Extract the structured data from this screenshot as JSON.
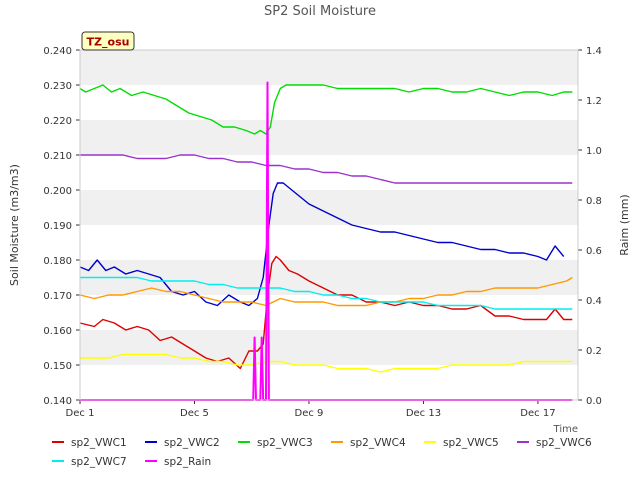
{
  "chart_data": {
    "type": "line",
    "title": "SP2 Soil Moisture",
    "xlabel": "Time",
    "ylabel": "Soil Moisture (m3/m3)",
    "y2label": "Raim (mm)",
    "station_label": "TZ_osu",
    "x_range_days": [
      1,
      18.4
    ],
    "x_ticks": [
      {
        "day": 1,
        "label": "Dec 1"
      },
      {
        "day": 5,
        "label": "Dec 5"
      },
      {
        "day": 9,
        "label": "Dec 9"
      },
      {
        "day": 13,
        "label": "Dec 13"
      },
      {
        "day": 17,
        "label": "Dec 17"
      }
    ],
    "ylim": [
      0.14,
      0.24
    ],
    "y_ticks": [
      "0.140",
      "0.150",
      "0.160",
      "0.170",
      "0.180",
      "0.190",
      "0.200",
      "0.210",
      "0.220",
      "0.230",
      "0.240"
    ],
    "y2lim": [
      0,
      1.4
    ],
    "y2_ticks": [
      "0.0",
      "0.2",
      "0.4",
      "0.6",
      "0.8",
      "1.0",
      "1.2",
      "1.4"
    ],
    "grid": "horizontal bands",
    "legend_position": "bottom",
    "series": [
      {
        "name": "sp2_VWC1",
        "color": "#dd0000",
        "axis": "left",
        "x": [
          1.0,
          1.5,
          1.8,
          2.2,
          2.6,
          3.0,
          3.4,
          3.8,
          4.2,
          4.6,
          5.0,
          5.4,
          5.8,
          6.2,
          6.6,
          6.9,
          7.2,
          7.4,
          7.55,
          7.7,
          7.85,
          8.0,
          8.3,
          8.6,
          9.0,
          9.5,
          10.0,
          10.5,
          11.0,
          11.5,
          12.0,
          12.5,
          13.0,
          13.5,
          14.0,
          14.5,
          15.0,
          15.5,
          16.0,
          16.5,
          17.0,
          17.3,
          17.6,
          17.9,
          18.2
        ],
        "y": [
          0.162,
          0.161,
          0.163,
          0.162,
          0.16,
          0.161,
          0.16,
          0.157,
          0.158,
          0.156,
          0.154,
          0.152,
          0.151,
          0.152,
          0.149,
          0.154,
          0.154,
          0.156,
          0.17,
          0.179,
          0.181,
          0.18,
          0.177,
          0.176,
          0.174,
          0.172,
          0.17,
          0.17,
          0.168,
          0.168,
          0.167,
          0.168,
          0.167,
          0.167,
          0.166,
          0.166,
          0.167,
          0.164,
          0.164,
          0.163,
          0.163,
          0.163,
          0.166,
          0.163,
          0.163
        ]
      },
      {
        "name": "sp2_VWC2",
        "color": "#0000cc",
        "axis": "left",
        "x": [
          1.0,
          1.3,
          1.6,
          1.9,
          2.2,
          2.6,
          3.0,
          3.4,
          3.8,
          4.2,
          4.6,
          5.0,
          5.4,
          5.8,
          6.2,
          6.6,
          6.9,
          7.2,
          7.4,
          7.6,
          7.75,
          7.9,
          8.1,
          8.4,
          8.7,
          9.0,
          9.5,
          10.0,
          10.5,
          11.0,
          11.5,
          12.0,
          12.5,
          13.0,
          13.5,
          14.0,
          14.5,
          15.0,
          15.5,
          16.0,
          16.5,
          17.0,
          17.3,
          17.6,
          17.9
        ],
        "y": [
          0.178,
          0.177,
          0.18,
          0.177,
          0.178,
          0.176,
          0.177,
          0.176,
          0.175,
          0.171,
          0.17,
          0.171,
          0.168,
          0.167,
          0.17,
          0.168,
          0.167,
          0.169,
          0.175,
          0.19,
          0.199,
          0.202,
          0.202,
          0.2,
          0.198,
          0.196,
          0.194,
          0.192,
          0.19,
          0.189,
          0.188,
          0.188,
          0.187,
          0.186,
          0.185,
          0.185,
          0.184,
          0.183,
          0.183,
          0.182,
          0.182,
          0.181,
          0.18,
          0.184,
          0.181
        ]
      },
      {
        "name": "sp2_VWC3",
        "color": "#00dd00",
        "axis": "left",
        "x": [
          1.0,
          1.2,
          1.5,
          1.8,
          2.1,
          2.4,
          2.8,
          3.2,
          3.6,
          4.0,
          4.4,
          4.8,
          5.2,
          5.6,
          6.0,
          6.4,
          6.8,
          7.1,
          7.3,
          7.5,
          7.65,
          7.8,
          8.0,
          8.2,
          8.5,
          9.0,
          9.5,
          10.0,
          10.5,
          11.0,
          11.5,
          12.0,
          12.5,
          13.0,
          13.5,
          14.0,
          14.5,
          15.0,
          15.5,
          16.0,
          16.5,
          17.0,
          17.5,
          17.9,
          18.2
        ],
        "y": [
          0.229,
          0.228,
          0.229,
          0.23,
          0.228,
          0.229,
          0.227,
          0.228,
          0.227,
          0.226,
          0.224,
          0.222,
          0.221,
          0.22,
          0.218,
          0.218,
          0.217,
          0.216,
          0.217,
          0.216,
          0.218,
          0.225,
          0.229,
          0.23,
          0.23,
          0.23,
          0.23,
          0.229,
          0.229,
          0.229,
          0.229,
          0.229,
          0.228,
          0.229,
          0.229,
          0.228,
          0.228,
          0.229,
          0.228,
          0.227,
          0.228,
          0.228,
          0.227,
          0.228,
          0.228
        ]
      },
      {
        "name": "sp2_VWC4",
        "color": "#ff9900",
        "axis": "left",
        "x": [
          1.0,
          1.5,
          2.0,
          2.5,
          3.0,
          3.5,
          4.0,
          4.5,
          5.0,
          5.5,
          6.0,
          6.5,
          7.0,
          7.5,
          8.0,
          8.5,
          9.0,
          9.5,
          10.0,
          10.5,
          11.0,
          11.5,
          12.0,
          12.5,
          13.0,
          13.5,
          14.0,
          14.5,
          15.0,
          15.5,
          16.0,
          16.5,
          17.0,
          17.5,
          18.0,
          18.2
        ],
        "y": [
          0.17,
          0.169,
          0.17,
          0.17,
          0.171,
          0.172,
          0.171,
          0.171,
          0.17,
          0.169,
          0.168,
          0.168,
          0.168,
          0.167,
          0.169,
          0.168,
          0.168,
          0.168,
          0.167,
          0.167,
          0.167,
          0.168,
          0.168,
          0.169,
          0.169,
          0.17,
          0.17,
          0.171,
          0.171,
          0.172,
          0.172,
          0.172,
          0.172,
          0.173,
          0.174,
          0.175
        ]
      },
      {
        "name": "sp2_VWC5",
        "color": "#ffff00",
        "axis": "left",
        "x": [
          1.0,
          1.5,
          2.0,
          2.5,
          3.0,
          3.5,
          4.0,
          4.5,
          5.0,
          5.5,
          6.0,
          6.5,
          7.0,
          7.5,
          8.0,
          8.5,
          9.0,
          9.5,
          10.0,
          10.5,
          11.0,
          11.5,
          12.0,
          12.5,
          13.0,
          13.5,
          14.0,
          14.5,
          15.0,
          15.5,
          16.0,
          16.5,
          17.0,
          17.5,
          18.0,
          18.2
        ],
        "y": [
          0.152,
          0.152,
          0.152,
          0.153,
          0.153,
          0.153,
          0.153,
          0.152,
          0.152,
          0.151,
          0.151,
          0.15,
          0.15,
          0.151,
          0.151,
          0.15,
          0.15,
          0.15,
          0.149,
          0.149,
          0.149,
          0.148,
          0.149,
          0.149,
          0.149,
          0.149,
          0.15,
          0.15,
          0.15,
          0.15,
          0.15,
          0.151,
          0.151,
          0.151,
          0.151,
          0.151
        ]
      },
      {
        "name": "sp2_VWC6",
        "color": "#9933cc",
        "axis": "left",
        "x": [
          1.0,
          1.5,
          2.0,
          2.5,
          3.0,
          3.5,
          4.0,
          4.5,
          5.0,
          5.5,
          6.0,
          6.5,
          7.0,
          7.5,
          8.0,
          8.5,
          9.0,
          9.5,
          10.0,
          10.5,
          11.0,
          11.5,
          12.0,
          12.5,
          13.0,
          13.5,
          14.0,
          14.5,
          15.0,
          15.5,
          16.0,
          16.5,
          17.0,
          17.5,
          18.0,
          18.2
        ],
        "y": [
          0.21,
          0.21,
          0.21,
          0.21,
          0.209,
          0.209,
          0.209,
          0.21,
          0.21,
          0.209,
          0.209,
          0.208,
          0.208,
          0.207,
          0.207,
          0.206,
          0.206,
          0.205,
          0.205,
          0.204,
          0.204,
          0.203,
          0.202,
          0.202,
          0.202,
          0.202,
          0.202,
          0.202,
          0.202,
          0.202,
          0.202,
          0.202,
          0.202,
          0.202,
          0.202,
          0.202
        ]
      },
      {
        "name": "sp2_VWC7",
        "color": "#00eeee",
        "axis": "left",
        "x": [
          1.0,
          1.5,
          2.0,
          2.5,
          3.0,
          3.5,
          4.0,
          4.5,
          5.0,
          5.5,
          6.0,
          6.5,
          7.0,
          7.5,
          8.0,
          8.5,
          9.0,
          9.5,
          10.0,
          10.5,
          11.0,
          11.5,
          12.0,
          12.5,
          13.0,
          13.5,
          14.0,
          14.5,
          15.0,
          15.5,
          16.0,
          16.5,
          17.0,
          17.5,
          18.0,
          18.2
        ],
        "y": [
          0.175,
          0.175,
          0.175,
          0.175,
          0.175,
          0.174,
          0.174,
          0.174,
          0.174,
          0.173,
          0.173,
          0.172,
          0.172,
          0.172,
          0.172,
          0.171,
          0.171,
          0.17,
          0.17,
          0.169,
          0.169,
          0.168,
          0.168,
          0.168,
          0.168,
          0.167,
          0.167,
          0.167,
          0.167,
          0.166,
          0.166,
          0.166,
          0.166,
          0.166,
          0.166,
          0.166
        ]
      },
      {
        "name": "sp2_Rain",
        "color": "#ff00ff",
        "axis": "right",
        "x": [
          1.0,
          7.05,
          7.1,
          7.15,
          7.3,
          7.35,
          7.4,
          7.5,
          7.55,
          7.6,
          7.7,
          7.75,
          18.2
        ],
        "y": [
          0,
          0,
          0.25,
          0,
          0,
          0.25,
          0,
          0,
          1.27,
          0,
          0,
          0,
          0
        ]
      }
    ]
  }
}
